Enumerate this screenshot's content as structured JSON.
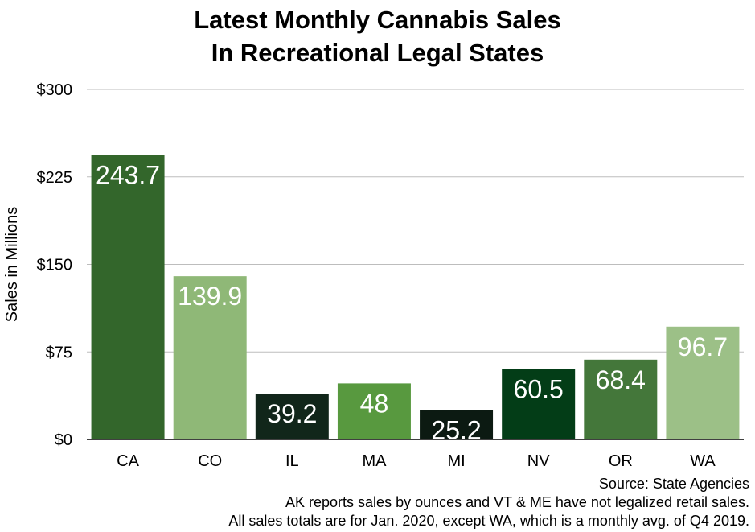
{
  "chart_data": {
    "type": "bar",
    "title_line1": "Latest Monthly Cannabis Sales",
    "title_line2": "In Recreational Legal States",
    "ylabel": "Sales in Millions",
    "xlabel": "",
    "ylim": [
      0,
      300
    ],
    "yticks": [
      0,
      75,
      150,
      225,
      300
    ],
    "ytick_labels": [
      "$0",
      "$75",
      "$150",
      "$225",
      "$300"
    ],
    "grid": true,
    "categories": [
      "CA",
      "CO",
      "IL",
      "MA",
      "MI",
      "NV",
      "OR",
      "WA"
    ],
    "values": [
      243.7,
      139.9,
      39.2,
      48,
      25.2,
      60.5,
      68.4,
      96.7
    ],
    "value_labels": [
      "243.7",
      "139.9",
      "39.2",
      "48",
      "25.2",
      "60.5",
      "68.4",
      "96.7"
    ],
    "colors": [
      "#33662b",
      "#8fb877",
      "#11261a",
      "#58993f",
      "#0c1a12",
      "#033d17",
      "#44773a",
      "#9cc087"
    ]
  },
  "notes": {
    "source": "Source: State Agencies",
    "line2": "AK reports sales by ounces and VT & ME have not legalized retail sales.",
    "line3": "All sales totals are for Jan. 2020, except WA, which is a monthly avg. of Q4 2019."
  }
}
